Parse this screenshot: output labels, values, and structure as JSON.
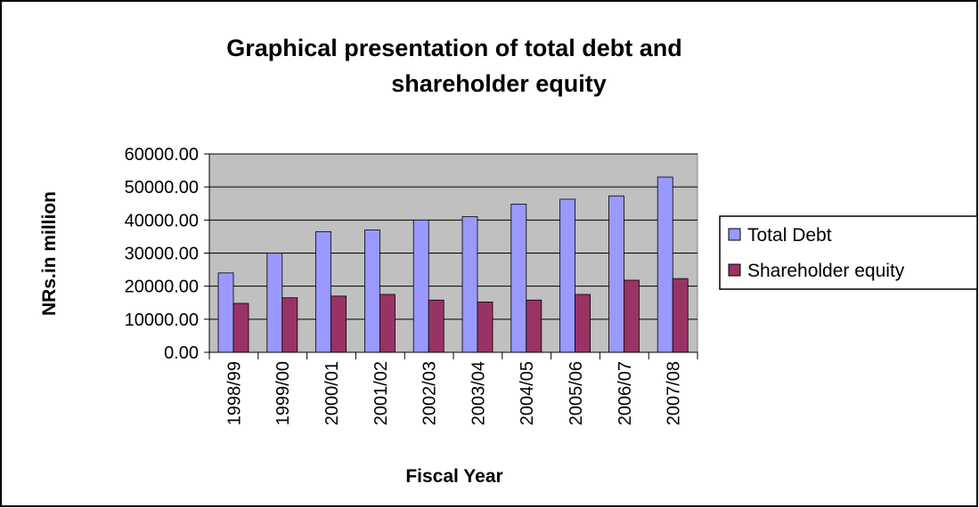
{
  "chart_data": {
    "type": "bar",
    "title": [
      "Graphical presentation of total debt and",
      "shareholder equity"
    ],
    "x_label": "Fiscal Year",
    "y_label": "NRs.in million",
    "categories": [
      "1998/99",
      "1999/00",
      "2000/01",
      "2001/02",
      "2002/03",
      "2003/04",
      "2004/05",
      "2005/06",
      "2006/07",
      "2007/08"
    ],
    "series": [
      {
        "name": "Total Debt",
        "color": "#9999ff",
        "values": [
          24000,
          30000,
          36500,
          37000,
          40000,
          41000,
          44800,
          46300,
          47300,
          53000
        ]
      },
      {
        "name": "Shareholder equity",
        "color": "#993366",
        "values": [
          14800,
          16500,
          17000,
          17500,
          15800,
          15200,
          15800,
          17500,
          21800,
          22300
        ]
      }
    ],
    "ylim": [
      0,
      60000
    ],
    "yticks": [
      {
        "value": 0,
        "label": "0.00"
      },
      {
        "value": 10000,
        "label": "10000.00"
      },
      {
        "value": 20000,
        "label": "20000.00"
      },
      {
        "value": 30000,
        "label": "30000.00"
      },
      {
        "value": 40000,
        "label": "40000.00"
      },
      {
        "value": 50000,
        "label": "50000.00"
      },
      {
        "value": 60000,
        "label": "60000.00"
      }
    ],
    "grid": true,
    "legend": "right"
  }
}
